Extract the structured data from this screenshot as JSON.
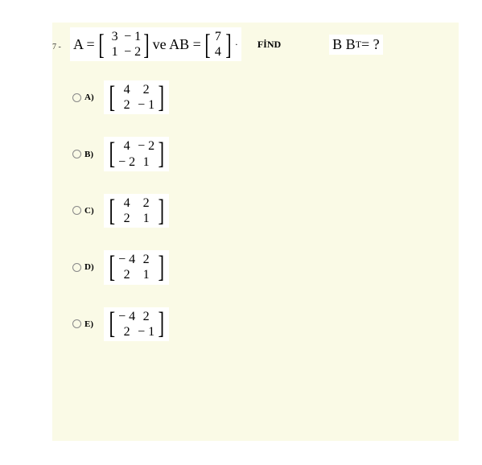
{
  "colors": {
    "page_bg": "#ffffff",
    "content_bg": "#fafae6",
    "box_bg": "#ffffff",
    "text": "#000000",
    "radio_border": "#888888"
  },
  "typography": {
    "serif_family": "Times New Roman",
    "question_fontsize": 18,
    "qnum_fontsize": 10,
    "option_label_fontsize": 11,
    "find_fontsize": 12,
    "matrix_cell_fontsize": 16
  },
  "question": {
    "number": "7 -",
    "A_label": "A =",
    "A_matrix": [
      [
        "3",
        "− 1"
      ],
      [
        "1",
        "− 2"
      ]
    ],
    "mid_text": "ve AB =",
    "AB_matrix": [
      [
        "7"
      ],
      [
        "4"
      ]
    ],
    "trailing": "·",
    "find_text": "FİND",
    "bbt_text": "B B",
    "bbt_sup": "T",
    "bbt_tail": " = ?"
  },
  "options": [
    {
      "label": "A)",
      "matrix": [
        [
          " 4",
          "2"
        ],
        [
          " 2",
          "− 1"
        ]
      ]
    },
    {
      "label": "B)",
      "matrix": [
        [
          " 4",
          "− 2"
        ],
        [
          "− 2",
          "1"
        ]
      ]
    },
    {
      "label": "C)",
      "matrix": [
        [
          "4",
          "2"
        ],
        [
          "2",
          "1"
        ]
      ]
    },
    {
      "label": "D)",
      "matrix": [
        [
          "− 4",
          "2"
        ],
        [
          " 2",
          "1"
        ]
      ]
    },
    {
      "label": "E)",
      "matrix": [
        [
          "− 4",
          "2"
        ],
        [
          " 2",
          "− 1"
        ]
      ]
    }
  ]
}
